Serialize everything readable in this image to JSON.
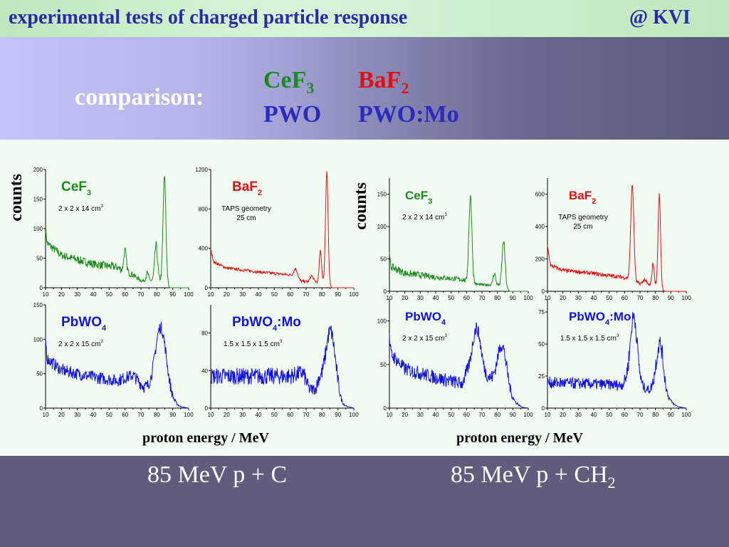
{
  "header": {
    "title": "experimental tests of charged particle response",
    "location": "@ KVI"
  },
  "comparison": {
    "label": "comparison:",
    "materials": [
      {
        "name": "CeF",
        "sub": "3",
        "color": "#1a8a1a"
      },
      {
        "name": "BaF",
        "sub": "2",
        "color": "#e01010"
      },
      {
        "name": "PWO",
        "sub": "",
        "color": "#2a2ac0"
      },
      {
        "name": "PWO:Mo",
        "sub": "",
        "color": "#2a2ac0"
      }
    ]
  },
  "axis_labels": {
    "y": "counts",
    "x": "proton energy / MeV"
  },
  "reactions": [
    {
      "text": "85 MeV p + C",
      "sub": ""
    },
    {
      "text": "85 MeV p + CH",
      "sub": "2"
    }
  ],
  "chart_data": [
    {
      "type": "line",
      "panel": "left-top-left",
      "reaction": "85 MeV p + C",
      "title": "CeF",
      "title_sub": "3",
      "annotation": "2 x 2 x 14 cm",
      "annotation_sup": "3",
      "color": "#1a8a1a",
      "xlim": [
        10,
        100
      ],
      "ylim": [
        0,
        200
      ],
      "xticks": [
        10,
        20,
        30,
        40,
        50,
        60,
        70,
        80,
        90,
        100
      ],
      "yticks": [
        0,
        50,
        100,
        150,
        200
      ],
      "baseline": [
        [
          10,
          100
        ],
        [
          11,
          75
        ],
        [
          20,
          55
        ],
        [
          40,
          40
        ],
        [
          55,
          35
        ],
        [
          58,
          30
        ],
        [
          65,
          22
        ],
        [
          70,
          12
        ],
        [
          77,
          12
        ],
        [
          85,
          12
        ],
        [
          88,
          0
        ],
        [
          100,
          0
        ]
      ],
      "noise": 7,
      "peaks": [
        [
          60,
          35,
          0.8
        ],
        [
          74,
          12,
          0.8
        ],
        [
          79.5,
          60,
          0.9
        ],
        [
          84.8,
          175,
          0.9
        ]
      ]
    },
    {
      "type": "line",
      "panel": "left-top-right",
      "reaction": "85 MeV p + C",
      "title": "BaF",
      "title_sub": "2",
      "annotation": "TAPS geometry\n25 cm",
      "color": "#e01010",
      "xlim": [
        10,
        100
      ],
      "ylim": [
        0,
        1200
      ],
      "xticks": [
        10,
        20,
        30,
        40,
        50,
        60,
        70,
        80,
        90,
        100
      ],
      "yticks": [
        0,
        400,
        800,
        1200
      ],
      "baseline": [
        [
          10,
          380
        ],
        [
          12,
          260
        ],
        [
          20,
          200
        ],
        [
          40,
          160
        ],
        [
          60,
          130
        ],
        [
          62,
          120
        ],
        [
          66,
          70
        ],
        [
          70,
          60
        ],
        [
          80,
          60
        ],
        [
          85,
          20
        ],
        [
          86,
          0
        ],
        [
          100,
          0
        ]
      ],
      "noise": 15,
      "peaks": [
        [
          63.5,
          90,
          1.2
        ],
        [
          73.5,
          60,
          1.0
        ],
        [
          79,
          320,
          0.7
        ],
        [
          83,
          1150,
          0.8
        ]
      ]
    },
    {
      "type": "line",
      "panel": "left-bottom-left",
      "reaction": "85 MeV p + C",
      "title": "PbWO",
      "title_sub": "4",
      "annotation": "2 x 2 x 15 cm",
      "annotation_sup": "3",
      "color": "#1010e0",
      "xlim": [
        10,
        100
      ],
      "ylim": [
        0,
        150
      ],
      "xticks": [
        10,
        20,
        30,
        40,
        50,
        60,
        70,
        80,
        90,
        100
      ],
      "yticks": [
        0,
        50,
        100,
        150
      ],
      "baseline": [
        [
          10,
          100
        ],
        [
          11,
          72
        ],
        [
          20,
          55
        ],
        [
          40,
          45
        ],
        [
          55,
          40
        ],
        [
          65,
          48
        ],
        [
          70,
          35
        ],
        [
          72,
          30
        ],
        [
          90,
          8
        ],
        [
          95,
          2
        ],
        [
          100,
          0
        ]
      ],
      "noise": 9,
      "peaks": [
        [
          82.5,
          100,
          3.5
        ]
      ]
    },
    {
      "type": "line",
      "panel": "left-bottom-right",
      "reaction": "85 MeV p + C",
      "title": "PbWO",
      "title_sub": "4",
      "title_suffix": ":Mo",
      "annotation": "1.5 x 1.5 x 1.5 cm",
      "annotation_sup": "3",
      "color": "#1010e0",
      "xlim": [
        10,
        100
      ],
      "ylim": [
        0,
        110
      ],
      "xticks": [
        10,
        20,
        30,
        40,
        50,
        60,
        70,
        80,
        90,
        100
      ],
      "yticks": [
        0,
        40,
        80
      ],
      "baseline": [
        [
          10,
          34
        ],
        [
          40,
          34
        ],
        [
          60,
          34
        ],
        [
          68,
          38
        ],
        [
          72,
          20
        ],
        [
          76,
          20
        ],
        [
          78,
          30
        ],
        [
          93,
          3
        ],
        [
          100,
          0
        ]
      ],
      "noise": 9,
      "peaks": [
        [
          85.5,
          65,
          3.0
        ]
      ]
    },
    {
      "type": "line",
      "panel": "right-top-left",
      "reaction": "85 MeV p + CH2",
      "title": "CeF",
      "title_sub": "3",
      "annotation": "2 x 2 x 14 cm",
      "annotation_sup": "3",
      "color": "#1a8a1a",
      "xlim": [
        10,
        100
      ],
      "ylim": [
        0,
        175
      ],
      "xticks": [
        10,
        20,
        30,
        40,
        50,
        60,
        70,
        80,
        90,
        100
      ],
      "yticks": [
        0,
        50,
        100,
        150
      ],
      "baseline": [
        [
          10,
          55
        ],
        [
          11,
          38
        ],
        [
          20,
          28
        ],
        [
          40,
          22
        ],
        [
          58,
          18
        ],
        [
          62,
          12
        ],
        [
          70,
          10
        ],
        [
          80,
          10
        ],
        [
          87,
          2
        ],
        [
          88,
          0
        ],
        [
          100,
          0
        ]
      ],
      "noise": 6,
      "peaks": [
        [
          62.5,
          135,
          1.0
        ],
        [
          78,
          18,
          0.8
        ],
        [
          84,
          72,
          1.0
        ]
      ]
    },
    {
      "type": "line",
      "panel": "right-top-right",
      "reaction": "85 MeV p + CH2",
      "title": "BaF",
      "title_sub": "2",
      "annotation": "TAPS geometry\n25 cm",
      "color": "#e01010",
      "xlim": [
        10,
        100
      ],
      "ylim": [
        0,
        700
      ],
      "xticks": [
        10,
        20,
        30,
        40,
        50,
        60,
        70,
        80,
        90,
        100
      ],
      "yticks": [
        0,
        200,
        400,
        600
      ],
      "baseline": [
        [
          10,
          280
        ],
        [
          12,
          160
        ],
        [
          20,
          130
        ],
        [
          40,
          110
        ],
        [
          60,
          85
        ],
        [
          63,
          80
        ],
        [
          68,
          50
        ],
        [
          75,
          40
        ],
        [
          82,
          30
        ],
        [
          85,
          5
        ],
        [
          87,
          0
        ],
        [
          100,
          0
        ]
      ],
      "noise": 12,
      "peaks": [
        [
          65,
          590,
          1.0
        ],
        [
          73,
          30,
          1.0
        ],
        [
          78.5,
          140,
          0.7
        ],
        [
          82.5,
          570,
          0.8
        ]
      ]
    },
    {
      "type": "line",
      "panel": "right-bottom-left",
      "reaction": "85 MeV p + CH2",
      "title": "PbWO",
      "title_sub": "4",
      "annotation": "2 x 2 x 15 cm",
      "annotation_sup": "3",
      "color": "#1010e0",
      "xlim": [
        10,
        100
      ],
      "ylim": [
        0,
        125
      ],
      "xticks": [
        10,
        20,
        30,
        40,
        50,
        60,
        70,
        80,
        90,
        100
      ],
      "yticks": [
        0,
        50,
        100
      ],
      "baseline": [
        [
          10,
          80
        ],
        [
          11,
          62
        ],
        [
          20,
          45
        ],
        [
          40,
          35
        ],
        [
          57,
          28
        ],
        [
          60,
          38
        ],
        [
          74,
          35
        ],
        [
          80,
          25
        ],
        [
          92,
          6
        ],
        [
          96,
          1
        ],
        [
          100,
          0
        ]
      ],
      "noise": 8,
      "peaks": [
        [
          66.5,
          55,
          2.8
        ],
        [
          83,
          52,
          3.0
        ]
      ]
    },
    {
      "type": "line",
      "panel": "right-bottom-right",
      "reaction": "85 MeV p + CH2",
      "title": "PbWO",
      "title_sub": "4",
      "title_suffix": ":Mo",
      "annotation": "1.5 x 1.5 x 1.5 cm",
      "annotation_sup": "3",
      "color": "#1010e0",
      "xlim": [
        10,
        100
      ],
      "ylim": [
        0,
        85
      ],
      "xticks": [
        10,
        20,
        30,
        40,
        50,
        60,
        70,
        80,
        90,
        100
      ],
      "yticks": [
        0,
        25,
        50,
        75
      ],
      "baseline": [
        [
          10,
          20
        ],
        [
          58,
          18
        ],
        [
          62,
          22
        ],
        [
          72,
          16
        ],
        [
          76,
          14
        ],
        [
          80,
          18
        ],
        [
          92,
          3
        ],
        [
          95,
          1
        ],
        [
          100,
          0
        ]
      ],
      "noise": 7,
      "peaks": [
        [
          66,
          52,
          2.2
        ],
        [
          83,
          36,
          2.2
        ]
      ]
    }
  ]
}
